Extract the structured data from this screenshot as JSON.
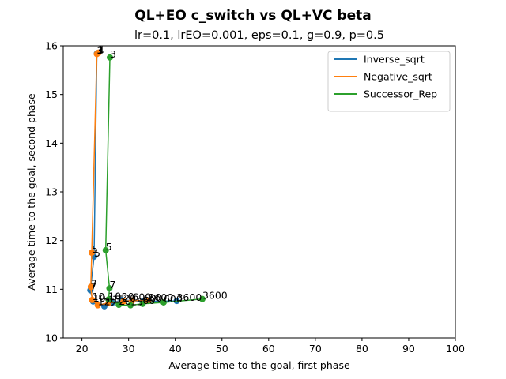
{
  "chart_data": {
    "type": "line",
    "title": "QL+EO c_switch vs QL+VC beta",
    "subtitle": "lr=0.1, lrEO=0.001, eps=0.1, g=0.9, p=0.5",
    "xlabel": "Average time to the goal, first phase",
    "ylabel": "Average time to the goal, second phase",
    "xlim": [
      16,
      100
    ],
    "ylim": [
      10,
      16
    ],
    "xticks": [
      20,
      30,
      40,
      50,
      60,
      70,
      80,
      90,
      100
    ],
    "yticks": [
      10,
      11,
      12,
      13,
      14,
      15,
      16
    ],
    "legend_position": "top-right",
    "grid": false,
    "series": [
      {
        "name": "Inverse_sqrt",
        "color": "#1f77b4",
        "points": [
          {
            "x": 23.3,
            "y": 15.85,
            "label": "1"
          },
          {
            "x": 23.2,
            "y": 15.84,
            "label": "3"
          },
          {
            "x": 22.6,
            "y": 11.67,
            "label": "5"
          },
          {
            "x": 21.8,
            "y": 10.98,
            "label": "7"
          },
          {
            "x": 22.4,
            "y": 10.75,
            "label": "10"
          },
          {
            "x": 24.8,
            "y": 10.65,
            "label": "12"
          },
          {
            "x": 26.5,
            "y": 10.72,
            "label": "15"
          },
          {
            "x": 28.5,
            "y": 10.78,
            "label": "20"
          },
          {
            "x": 33.2,
            "y": 10.75,
            "label": "600"
          },
          {
            "x": 40.3,
            "y": 10.76,
            "label": "3600"
          }
        ]
      },
      {
        "name": "Negative_sqrt",
        "color": "#ff7f0e",
        "points": [
          {
            "x": 23.6,
            "y": 15.86,
            "label": "1"
          },
          {
            "x": 23.2,
            "y": 15.83,
            "label": "3"
          },
          {
            "x": 22.1,
            "y": 11.75,
            "label": "5"
          },
          {
            "x": 21.9,
            "y": 11.05,
            "label": "7"
          },
          {
            "x": 22.2,
            "y": 10.78,
            "label": "10"
          },
          {
            "x": 23.4,
            "y": 10.67,
            "label": "12"
          },
          {
            "x": 25.7,
            "y": 10.72,
            "label": "15"
          },
          {
            "x": 28.9,
            "y": 10.75,
            "label": "20"
          },
          {
            "x": 30.8,
            "y": 10.77,
            "label": "600"
          },
          {
            "x": 34.2,
            "y": 10.76,
            "label": "3600"
          }
        ]
      },
      {
        "name": "Successor_Rep",
        "color": "#2ca02c",
        "points": [
          {
            "x": 26.0,
            "y": 15.76,
            "label": "3"
          },
          {
            "x": 25.1,
            "y": 11.8,
            "label": "5"
          },
          {
            "x": 25.9,
            "y": 11.02,
            "label": "7"
          },
          {
            "x": 25.7,
            "y": 10.79,
            "label": "10"
          },
          {
            "x": 27.9,
            "y": 10.68,
            "label": "20"
          },
          {
            "x": 30.4,
            "y": 10.67,
            "label": "15"
          },
          {
            "x": 33.0,
            "y": 10.7,
            "label": "60"
          },
          {
            "x": 37.5,
            "y": 10.73,
            "label": "600"
          },
          {
            "x": 45.8,
            "y": 10.8,
            "label": "3600"
          }
        ]
      }
    ]
  }
}
